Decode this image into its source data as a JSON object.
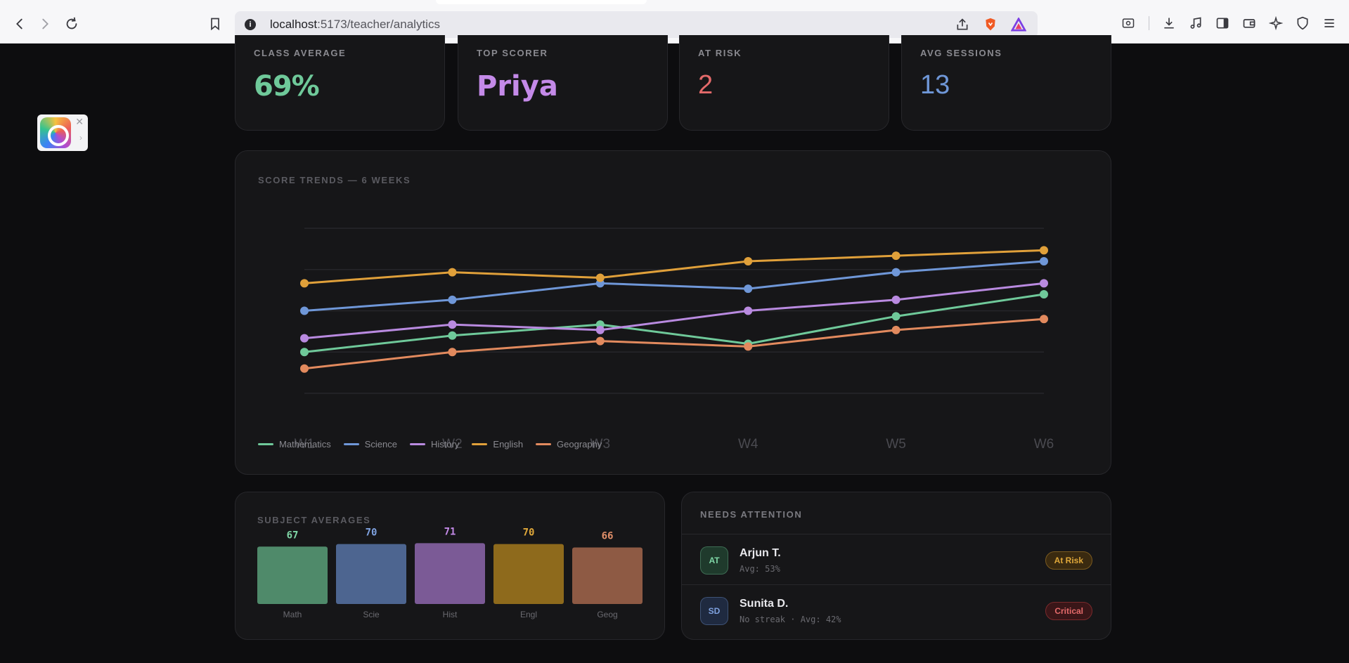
{
  "browser": {
    "url_host": "localhost",
    "url_rest": ":5173/teacher/analytics"
  },
  "stats": [
    {
      "label": "CLASS AVERAGE",
      "value": "69%",
      "color": "#6fc99a"
    },
    {
      "label": "TOP SCORER",
      "value": "Priya",
      "color": "#c48ae8"
    },
    {
      "label": "AT RISK",
      "value": "2",
      "color": "#e46a6a"
    },
    {
      "label": "AVG SESSIONS",
      "value": "13",
      "color": "#6f97d8"
    }
  ],
  "trends": {
    "title": "SCORE TRENDS — 6 WEEKS"
  },
  "subject_averages": {
    "title": "SUBJECT AVERAGES"
  },
  "attention": {
    "title": "NEEDS ATTENTION",
    "students": [
      {
        "initials": "AT",
        "name": "Arjun T.",
        "detail": "Avg: 53%",
        "status": "At Risk",
        "avatar_bg": "#1f3a2c",
        "avatar_fg": "#7fd6a6",
        "badge_bg": "#3a2a10",
        "badge_fg": "#e0a83a",
        "badge_border": "#7a5a20"
      },
      {
        "initials": "SD",
        "name": "Sunita D.",
        "detail": "No streak · Avg: 42%",
        "status": "Critical",
        "avatar_bg": "#1f2a40",
        "avatar_fg": "#7fa2e0",
        "badge_bg": "#3a1618",
        "badge_fg": "#e46a6a",
        "badge_border": "#7a2a2c"
      }
    ]
  },
  "chart_data": [
    {
      "type": "line",
      "title": "SCORE TRENDS — 6 WEEKS",
      "x": [
        "W1",
        "W2",
        "W3",
        "W4",
        "W5",
        "W6"
      ],
      "ylim": [
        40,
        100
      ],
      "grid": true,
      "legend": "bottom-left",
      "series": [
        {
          "name": "Mathematics",
          "color": "#6fc99a",
          "values": [
            55,
            61,
            65,
            58,
            68,
            76
          ]
        },
        {
          "name": "Science",
          "color": "#6f97d8",
          "values": [
            70,
            74,
            80,
            78,
            84,
            88
          ]
        },
        {
          "name": "History",
          "color": "#b98ae0",
          "values": [
            60,
            65,
            63,
            70,
            74,
            80
          ]
        },
        {
          "name": "English",
          "color": "#e0a03a",
          "values": [
            80,
            84,
            82,
            88,
            90,
            92
          ]
        },
        {
          "name": "Geography",
          "color": "#e28a5e",
          "values": [
            49,
            55,
            59,
            57,
            63,
            67
          ]
        }
      ]
    },
    {
      "type": "bar",
      "title": "SUBJECT AVERAGES",
      "categories": [
        "Math",
        "Scie",
        "Hist",
        "Engl",
        "Geog"
      ],
      "values": [
        67,
        70,
        71,
        70,
        66
      ],
      "colors": [
        "#4f8a6a",
        "#4d6590",
        "#7b5a96",
        "#8e6a1c",
        "#8e5a44"
      ],
      "label_colors": [
        "#7fd6a6",
        "#7fa2e0",
        "#c48ae8",
        "#e0a83a",
        "#e2906a"
      ]
    }
  ]
}
